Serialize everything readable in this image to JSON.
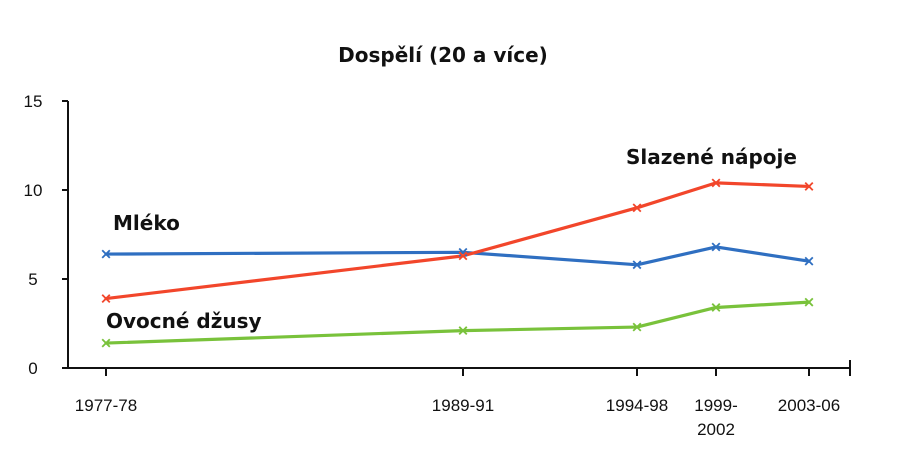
{
  "chart_data": {
    "type": "line",
    "title": "Dospělí (20 a více)",
    "xlabel": "",
    "ylabel": "",
    "ylim": [
      0,
      15
    ],
    "yticks": [
      "0",
      "5",
      "10",
      "15"
    ],
    "categories": [
      "1977-78",
      "1989-91",
      "1994-98",
      "1999-2002",
      "2003-06"
    ],
    "category_labels": [
      [
        "1977-78"
      ],
      [
        "1989-91"
      ],
      [
        "1994-98"
      ],
      [
        "1999-",
        "2002"
      ],
      [
        "2003-06"
      ]
    ],
    "grid": false,
    "legend": "inline labels",
    "series": [
      {
        "name": "Mléko",
        "color": "#2f6fc1",
        "values": [
          6.4,
          6.5,
          5.8,
          6.8,
          6.0
        ]
      },
      {
        "name": "Slazené nápoje",
        "color": "#f2462b",
        "values": [
          3.9,
          6.3,
          9.0,
          10.4,
          10.2
        ]
      },
      {
        "name": "Ovocné džusy",
        "color": "#79c23b",
        "values": [
          1.4,
          2.1,
          2.3,
          3.4,
          3.7
        ]
      }
    ]
  }
}
